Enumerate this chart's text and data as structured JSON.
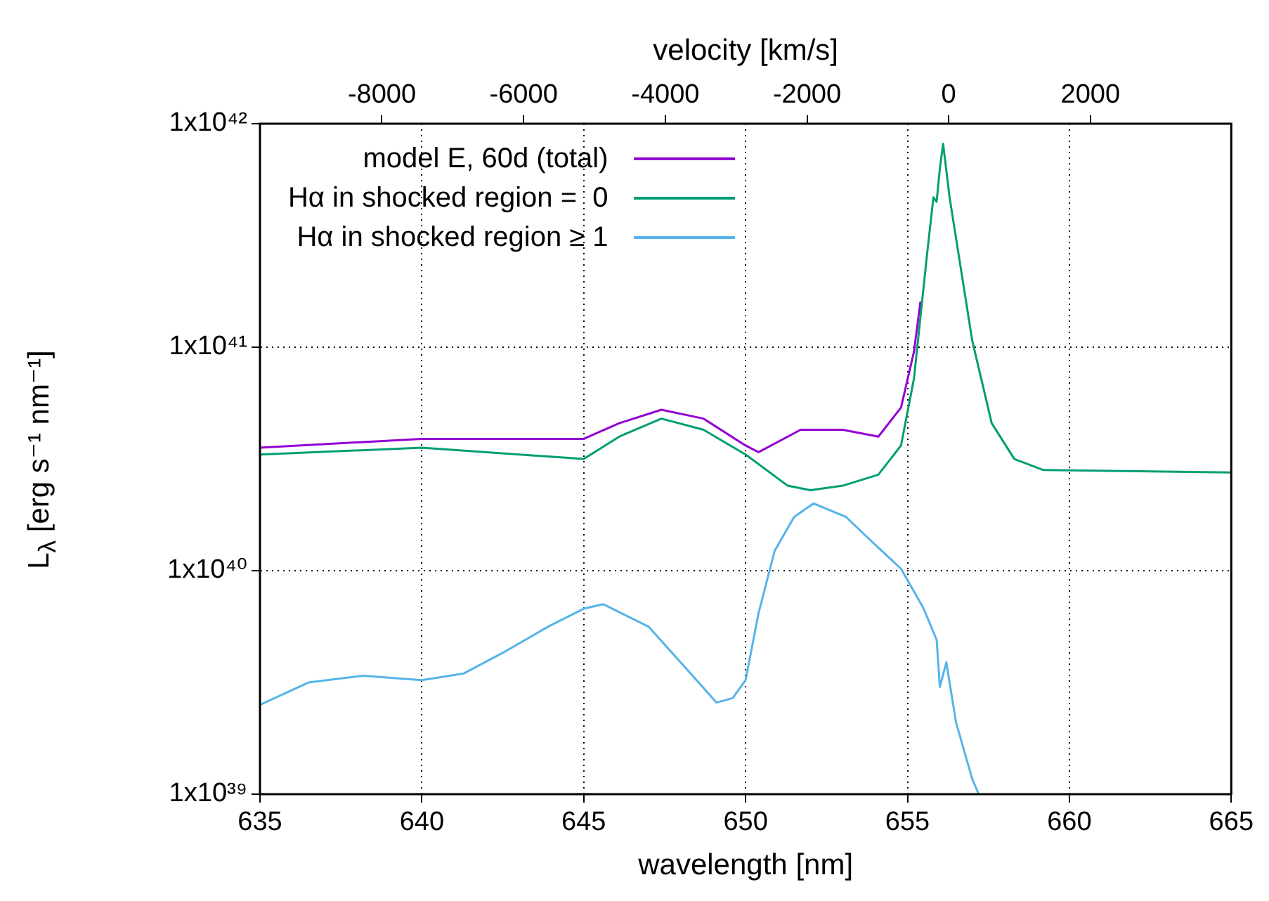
{
  "chart_data": {
    "type": "line",
    "xlabel": "wavelength [nm]",
    "ylabel": "L$_{λ}$ [erg s⁻¹ nm⁻¹]",
    "x2label": "velocity [km/s]",
    "log": "y",
    "grid": true,
    "legend": "top left",
    "xlim": [
      635,
      665
    ],
    "xticks": [
      635,
      640,
      645,
      650,
      655,
      660,
      665
    ],
    "x2lim": [
      -9721,
      3988
    ],
    "x2ticks": [
      -8000,
      -6000,
      -4000,
      -2000,
      0,
      2000
    ],
    "ylim": [
      1e+39,
      1e+42
    ],
    "yticks": [
      {
        "value": 1e+39,
        "label": "1x10³⁹"
      },
      {
        "value": 1e+40,
        "label": "1x10⁴⁰"
      },
      {
        "value": 1e+41,
        "label": "1x10⁴¹"
      },
      {
        "value": 1e+42,
        "label": "1x10⁴²"
      }
    ],
    "series": [
      {
        "name": "model E, 60d (total)",
        "color": "#9400d3",
        "x": [
          635,
          640,
          645,
          646.1,
          647.4,
          648.7,
          650,
          650.4,
          651.7,
          653,
          654.1,
          654.8,
          655.2,
          655.4
        ],
        "values": [
          3.55e+40,
          3.89e+40,
          3.89e+40,
          4.57e+40,
          5.25e+40,
          4.79e+40,
          3.63e+40,
          3.39e+40,
          4.27e+40,
          4.27e+40,
          3.98e+40,
          5.37e+40,
          9.55e+40,
          1.6e+41
        ]
      },
      {
        "name": "Hα in shocked region =  0",
        "color": "#009e73",
        "x": [
          635,
          640,
          645,
          646.1,
          647.4,
          648.7,
          650,
          651.3,
          652,
          653,
          654.1,
          654.8,
          655.2,
          655.6,
          655.8,
          655.9,
          656,
          656.1,
          656.3,
          657,
          657.6,
          658.3,
          659.2,
          665
        ],
        "values": [
          3.31e+40,
          3.55e+40,
          3.16e+40,
          3.98e+40,
          4.79e+40,
          4.27e+40,
          3.31e+40,
          2.4e+40,
          2.29e+40,
          2.4e+40,
          2.69e+40,
          3.63e+40,
          7.24e+40,
          2.57e+41,
          4.68e+41,
          4.47e+41,
          6.31e+41,
          8.13e+41,
          4.68e+41,
          1.07e+41,
          4.57e+40,
          3.16e+40,
          2.82e+40,
          2.75e+40
        ]
      },
      {
        "name": "Hα in shocked region ≥ 1",
        "color": "#56b4e9",
        "x": [
          635,
          636.5,
          638.2,
          640,
          641.3,
          642.6,
          643.9,
          645,
          645.6,
          647,
          648.3,
          649.1,
          649.6,
          650,
          650.4,
          650.9,
          651.5,
          652.1,
          653.1,
          653.9,
          654.8,
          655.5,
          655.9,
          656,
          656.2,
          656.5,
          657,
          657.2
        ],
        "values": [
          2.51e+39,
          3.16e+39,
          3.39e+39,
          3.24e+39,
          3.47e+39,
          4.37e+39,
          5.62e+39,
          6.76e+39,
          7.08e+39,
          5.62e+39,
          3.47e+39,
          2.57e+39,
          2.69e+39,
          3.24e+39,
          6.46e+39,
          1.23e+40,
          1.74e+40,
          2e+40,
          1.74e+40,
          1.35e+40,
          1.02e+40,
          6.76e+39,
          4.9e+39,
          3.02e+39,
          3.89e+39,
          2.09e+39,
          1.17e+39,
          1e+39
        ]
      }
    ]
  }
}
